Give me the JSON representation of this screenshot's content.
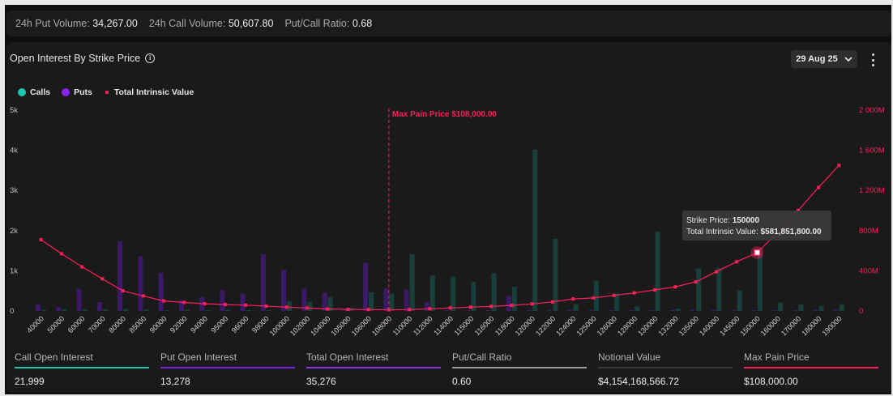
{
  "summary": [
    {
      "label": "24h Put Volume:",
      "value": "34,267.00"
    },
    {
      "label": "24h Call Volume:",
      "value": "50,607.80"
    },
    {
      "label": "Put/Call Ratio:",
      "value": "0.68"
    }
  ],
  "panel": {
    "title": "Open Interest By Strike Price",
    "info_icon": "info-icon",
    "date_label": "29 Aug 25",
    "date_icon": "chevron-down-icon",
    "menu_icon": "kebab-menu-icon"
  },
  "legend": [
    {
      "label": "Calls",
      "color": "#1f8f80"
    },
    {
      "label": "Puts",
      "color": "#7a22e0"
    },
    {
      "label": "Total Intrinsic Value",
      "color": "#ff1f5a"
    }
  ],
  "chart_data": {
    "type": "bar",
    "combo": "bar+line",
    "categories": [
      "40000",
      "50000",
      "60000",
      "70000",
      "80000",
      "85000",
      "90000",
      "92000",
      "94000",
      "95000",
      "96000",
      "98000",
      "100000",
      "102000",
      "104000",
      "105000",
      "106000",
      "108000",
      "110000",
      "112000",
      "114000",
      "115000",
      "116000",
      "118000",
      "120000",
      "122000",
      "124000",
      "125000",
      "126000",
      "128000",
      "130000",
      "132000",
      "135000",
      "140000",
      "145000",
      "150000",
      "160000",
      "170000",
      "180000",
      "190000"
    ],
    "series": [
      {
        "name": "Calls",
        "axis": "left",
        "values": [
          30,
          40,
          40,
          40,
          50,
          40,
          20,
          30,
          20,
          30,
          20,
          20,
          240,
          230,
          350,
          80,
          470,
          440,
          1420,
          890,
          850,
          720,
          940,
          600,
          4020,
          1800,
          170,
          750,
          440,
          110,
          1980,
          60,
          1060,
          1070,
          510,
          1560,
          210,
          160,
          120,
          170
        ]
      },
      {
        "name": "Puts",
        "axis": "left",
        "values": [
          170,
          100,
          550,
          220,
          1730,
          1360,
          950,
          270,
          340,
          520,
          430,
          1410,
          1020,
          550,
          460,
          30,
          1200,
          560,
          530,
          220,
          20,
          20,
          20,
          370,
          20,
          20,
          20,
          20,
          20,
          20,
          20,
          20,
          20,
          20,
          20,
          20,
          20,
          20,
          20,
          20
        ]
      },
      {
        "name": "Total Intrinsic Value",
        "axis": "right",
        "type": "line",
        "values": [
          710000000,
          570000000,
          440000000,
          320000000,
          200000000,
          150000000,
          100000000,
          85000000,
          72000000,
          64000000,
          58000000,
          48000000,
          38000000,
          30000000,
          20000000,
          16000000,
          14000000,
          12000000,
          14000000,
          22000000,
          30000000,
          38000000,
          46000000,
          56000000,
          70000000,
          90000000,
          120000000,
          130000000,
          155000000,
          180000000,
          210000000,
          240000000,
          290000000,
          390000000,
          490000000,
          581851800,
          780000000,
          1000000000,
          1230000000,
          1450000000
        ]
      }
    ],
    "y_left": {
      "ticks": [
        "0",
        "1k",
        "2k",
        "3k",
        "4k",
        "5k"
      ],
      "range": [
        0,
        5000
      ]
    },
    "y_right": {
      "ticks": [
        "0",
        "400M",
        "800M",
        "1 200M",
        "1 600M",
        "2 000M"
      ],
      "range": [
        0,
        2000000000
      ]
    },
    "max_pain": {
      "label": "Max Pain Price $108,000.00",
      "strike": "108000"
    },
    "tooltip": {
      "strike_label": "Strike Price:",
      "strike_value": "150000",
      "tiv_label": "Total Intrinsic Value:",
      "tiv_value": "$581,851,800.00",
      "strike": "150000"
    },
    "grid": false
  },
  "stats": [
    {
      "label": "Call Open Interest",
      "value": "21,999",
      "color": "#1fc6b0"
    },
    {
      "label": "Put Open Interest",
      "value": "13,278",
      "color": "#7a22e0"
    },
    {
      "label": "Total Open Interest",
      "value": "35,276",
      "color": "#8a34e8"
    },
    {
      "label": "Put/Call Ratio",
      "value": "0.60",
      "color": "#9a9a9a"
    },
    {
      "label": "Notional Value",
      "value": "$4,154,168,566.72",
      "color": "#3a3a3a"
    },
    {
      "label": "Max Pain Price",
      "value": "$108,000.00",
      "color": "#ff1f5a"
    }
  ]
}
